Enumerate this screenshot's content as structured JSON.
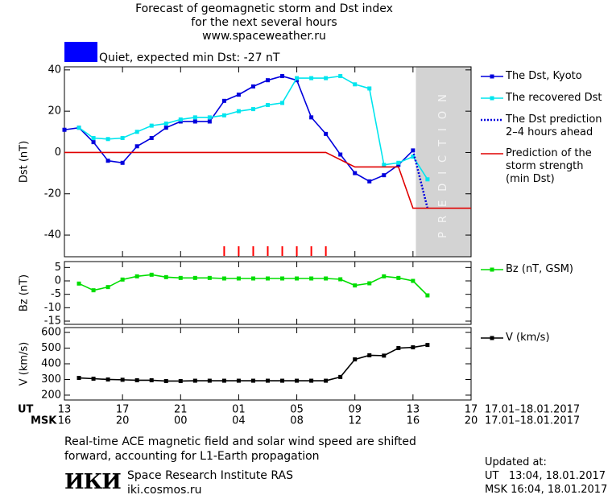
{
  "header": {
    "title": "Forecast of geomagnetic storm and Dst index\nfor the next several hours\nwww.spaceweather.ru",
    "status": "Quiet, expected min Dst: -27 nT",
    "status_color": "#0000ff"
  },
  "time_axis": {
    "ut_label": "UT",
    "msk_label": "MSK",
    "xlim": [
      13,
      41
    ],
    "xticks": [
      13,
      17,
      21,
      {
        "value": 25,
        "label": "01"
      },
      {
        "value": 29,
        "label": "05"
      },
      {
        "value": 33,
        "label": "09"
      },
      {
        "value": 37,
        "label": "13"
      },
      {
        "value": 41,
        "label": "17"
      }
    ],
    "msk_ticks": [
      {
        "value": 13,
        "label": "16"
      },
      {
        "value": 17,
        "label": "20"
      },
      {
        "value": 21,
        "label": "00"
      },
      {
        "value": 25,
        "label": "04"
      },
      {
        "value": 29,
        "label": "08"
      },
      {
        "value": 33,
        "label": "12"
      },
      {
        "value": 37,
        "label": "16"
      },
      {
        "value": 41,
        "label": "20"
      }
    ],
    "ut_range": "17.01–18.01.2017",
    "msk_range": "17.01–18.01.2017"
  },
  "chart_data": [
    {
      "type": "line",
      "y_label": "Dst (nT)",
      "xlim": [
        13,
        41
      ],
      "ylim": [
        -50.5,
        41.5
      ],
      "yticks": [
        -40,
        -20,
        0,
        20,
        40
      ],
      "grid": false,
      "prediction_zone": {
        "label": "PREDICTION",
        "x": [
          37.2,
          41
        ],
        "color": "#d3d3d3"
      },
      "storm_marks": {
        "color": "#ff0000",
        "x": [
          24,
          25,
          26,
          27,
          28,
          29,
          30,
          31
        ]
      },
      "series": [
        {
          "name": "The Dst, Kyoto",
          "color": "#0000dd",
          "marker": "square",
          "x": [
            13,
            14,
            15,
            16,
            17,
            18,
            19,
            20,
            21,
            22,
            23,
            24,
            25,
            26,
            27,
            28,
            29,
            30,
            31,
            32,
            33,
            34,
            35,
            36,
            37
          ],
          "values": [
            11,
            12,
            5,
            -4,
            -5,
            3,
            7,
            12,
            15,
            15,
            15,
            25,
            28,
            32,
            35,
            37,
            35,
            17,
            9,
            -1,
            -10,
            -14,
            -11,
            -6,
            1
          ]
        },
        {
          "name": "The recovered Dst",
          "color": "#00e5ee",
          "marker": "square",
          "x": [
            14,
            15,
            16,
            17,
            18,
            19,
            20,
            21,
            22,
            23,
            24,
            25,
            26,
            27,
            28,
            29,
            30,
            31,
            32,
            33,
            34,
            35,
            36,
            37,
            38
          ],
          "values": [
            12,
            7,
            6.5,
            7,
            10,
            13,
            14,
            16,
            17,
            17,
            18,
            20,
            21,
            23,
            24,
            36,
            36,
            36,
            37,
            33,
            31,
            -6,
            -5,
            -2,
            -13
          ]
        },
        {
          "name": "The Dst prediction\n2–4 hours ahead",
          "color": "#0000dd",
          "dash": "dotted",
          "x": [
            37,
            38
          ],
          "values": [
            1,
            -27
          ]
        },
        {
          "name": "Prediction of the\nstorm strength\n(min Dst)",
          "color": "#e00000",
          "x": [
            13,
            31,
            33,
            36,
            37,
            41
          ],
          "values": [
            0,
            0,
            -7,
            -7,
            -27,
            -27
          ]
        }
      ]
    },
    {
      "type": "line",
      "y_label": "Bz (nT)",
      "xlim": [
        13,
        41
      ],
      "ylim": [
        -16.2,
        7.2
      ],
      "yticks": [
        -15,
        -10,
        -5,
        0,
        5
      ],
      "grid": false,
      "series": [
        {
          "name": "Bz (nT, GSM)",
          "color": "#00dd00",
          "marker": "square",
          "x": [
            14,
            15,
            16,
            17,
            18,
            19,
            20,
            21,
            22,
            23,
            24,
            25,
            26,
            27,
            28,
            29,
            30,
            31,
            32,
            33,
            34,
            35,
            36,
            37,
            38
          ],
          "values": [
            -1,
            -3.5,
            -2.3,
            0.5,
            1.7,
            2.3,
            1.4,
            1.1,
            1.1,
            1.1,
            0.9,
            0.9,
            0.9,
            0.9,
            0.9,
            0.9,
            0.9,
            0.9,
            0.6,
            -1.7,
            -0.9,
            1.7,
            1.1,
            0,
            -5.4
          ]
        }
      ]
    },
    {
      "type": "line",
      "y_label": "V (km/s)",
      "xlim": [
        13,
        41
      ],
      "ylim": [
        169,
        631
      ],
      "yticks": [
        200,
        300,
        400,
        500,
        600
      ],
      "grid": false,
      "series": [
        {
          "name": "V (km/s)",
          "color": "#000000",
          "marker": "square",
          "x": [
            14,
            15,
            16,
            17,
            18,
            19,
            20,
            21,
            22,
            23,
            24,
            25,
            26,
            27,
            28,
            29,
            30,
            31,
            32,
            33,
            34,
            35,
            36,
            37,
            38
          ],
          "values": [
            310,
            305,
            300,
            298,
            295,
            295,
            290,
            290,
            292,
            292,
            292,
            292,
            292,
            292,
            292,
            292,
            292,
            292,
            316,
            428,
            454,
            452,
            500,
            505,
            520
          ]
        }
      ]
    }
  ],
  "footer": {
    "note": "Real-time ACE magnetic field and solar wind speed are shifted\nforward, accounting for L1-Earth propagation",
    "logo": "ИКИ",
    "institute": "Space Research Institute RAS",
    "url": "iki.cosmos.ru",
    "updated_title": "Updated at:",
    "updated_ut": "UT   13:04, 18.01.2017",
    "updated_msk": "MSK 16:04, 18.01.2017"
  }
}
